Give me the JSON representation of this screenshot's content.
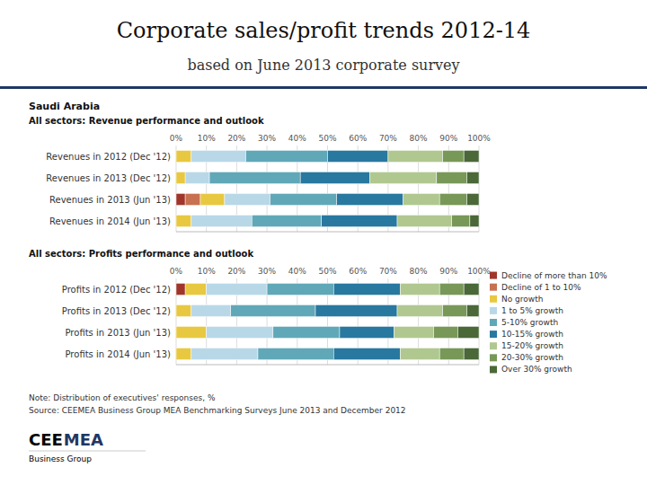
{
  "chart_data": [
    {
      "type": "bar",
      "orientation": "horizontal",
      "stacked": true,
      "grid": true,
      "title": "Corporate sales/profit trends 2012-14",
      "subtitle": "based on June 2013 corporate survey",
      "annotations": [
        "Saudi Arabia",
        "All sectors: Revenue performance and outlook"
      ],
      "categories": [
        "Revenues in 2012 (Dec '12)",
        "Revenues in 2013 (Dec '12)",
        "Revenues in 2013 (Jun '13)",
        "Revenues in 2014 (Jun '13)"
      ],
      "xlim": [
        0,
        100
      ],
      "xticks": [
        {
          "value": 0,
          "label": "0%"
        },
        {
          "value": 10,
          "label": "10%"
        },
        {
          "value": 20,
          "label": "20%"
        },
        {
          "value": 30,
          "label": "30%"
        },
        {
          "value": 40,
          "label": "40%"
        },
        {
          "value": 50,
          "label": "50%"
        },
        {
          "value": 60,
          "label": "60%"
        },
        {
          "value": 70,
          "label": "70%"
        },
        {
          "value": 80,
          "label": "80%"
        },
        {
          "value": 90,
          "label": "90%"
        },
        {
          "value": 100,
          "label": "100%"
        }
      ],
      "series": [
        {
          "color": "#A0362A",
          "values": [
            0,
            0,
            3,
            0
          ]
        },
        {
          "color": "#C87050",
          "values": [
            0,
            0,
            5,
            0
          ]
        },
        {
          "color": "#E8C840",
          "values": [
            5,
            3,
            8,
            5
          ]
        },
        {
          "color": "#B8D8E8",
          "values": [
            18,
            8,
            15,
            20
          ]
        },
        {
          "color": "#60A8B8",
          "values": [
            27,
            30,
            22,
            23
          ]
        },
        {
          "color": "#2878A0",
          "values": [
            20,
            23,
            22,
            25
          ]
        },
        {
          "color": "#B0C890",
          "values": [
            18,
            22,
            12,
            18
          ]
        },
        {
          "color": "#789858",
          "values": [
            7,
            10,
            9,
            6
          ]
        },
        {
          "color": "#4A6838",
          "values": [
            5,
            4,
            4,
            3
          ]
        }
      ]
    },
    {
      "type": "bar",
      "orientation": "horizontal",
      "stacked": true,
      "grid": true,
      "legend": "right",
      "title": "All sectors: Profits performance and outlook",
      "annotations": [
        "Note: Distribution of executives' responses, %",
        "Source: CEEMEA Business Group MEA Benchmarking Surveys June 2013 and December 2012",
        "CEE",
        "MEA",
        "Business Group"
      ],
      "categories": [
        "Profits in 2012 (Dec '12)",
        "Profits in 2013 (Dec '12)",
        "Profits in 2013 (Jun '13)",
        "Profits in 2014 (Jun '13)"
      ],
      "xlim": [
        0,
        100
      ],
      "xticks": [
        {
          "value": 0,
          "label": "0%"
        },
        {
          "value": 10,
          "label": "10%"
        },
        {
          "value": 20,
          "label": "20%"
        },
        {
          "value": 30,
          "label": "30%"
        },
        {
          "value": 40,
          "label": "40%"
        },
        {
          "value": 50,
          "label": "50%"
        },
        {
          "value": 60,
          "label": "60%"
        },
        {
          "value": 70,
          "label": "70%"
        },
        {
          "value": 80,
          "label": "80%"
        },
        {
          "value": 90,
          "label": "90%"
        },
        {
          "value": 100,
          "label": "100%"
        }
      ],
      "series": [
        {
          "name": "Decline of more than 10%",
          "color": "#A0362A",
          "values": [
            3,
            0,
            0,
            0
          ]
        },
        {
          "name": "Decline of 1 to 10%",
          "color": "#C87050",
          "values": [
            0,
            0,
            0,
            0
          ]
        },
        {
          "name": "No growth",
          "color": "#E8C840",
          "values": [
            7,
            5,
            10,
            5
          ]
        },
        {
          "name": "1 to 5% growth",
          "color": "#B8D8E8",
          "values": [
            20,
            13,
            22,
            22
          ]
        },
        {
          "name": "5-10% growth",
          "color": "#60A8B8",
          "values": [
            22,
            28,
            22,
            25
          ]
        },
        {
          "name": "10-15% growth",
          "color": "#2878A0",
          "values": [
            22,
            27,
            18,
            22
          ]
        },
        {
          "name": "15-20% growth",
          "color": "#B0C890",
          "values": [
            13,
            15,
            13,
            13
          ]
        },
        {
          "name": "20-30% growth",
          "color": "#789858",
          "values": [
            8,
            8,
            8,
            8
          ]
        },
        {
          "name": "Over 30% growth",
          "color": "#4A6838",
          "values": [
            5,
            4,
            7,
            5
          ]
        }
      ]
    }
  ]
}
